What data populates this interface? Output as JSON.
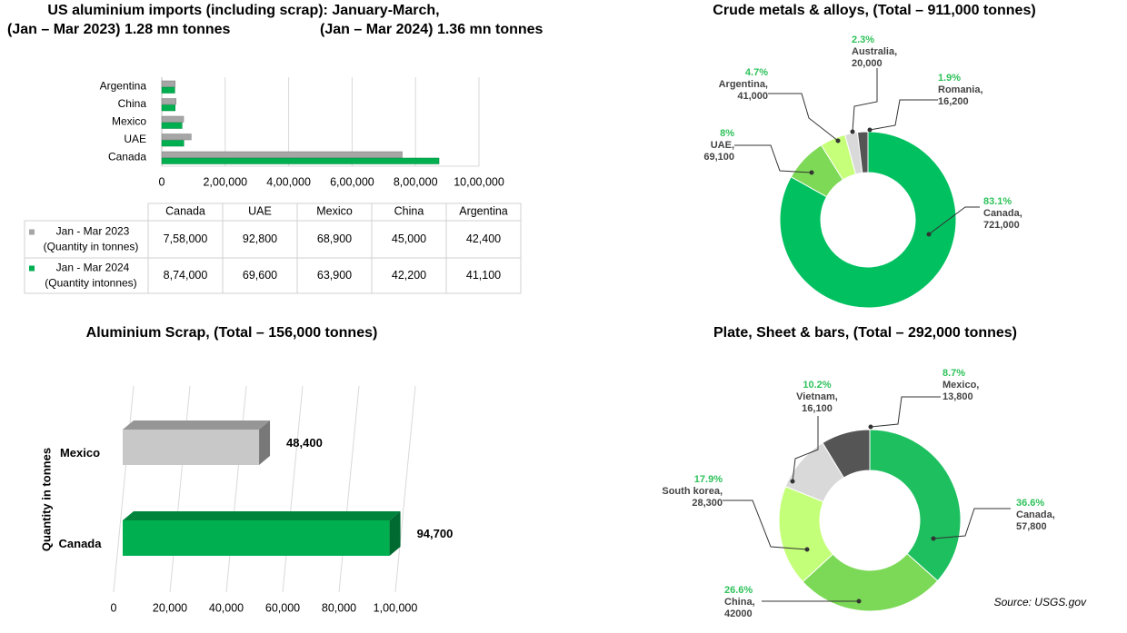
{
  "chart_data": [
    {
      "type": "hbar",
      "title": "US aluminium imports (including scrap): January-March,",
      "subtitles": [
        "(Jan – Mar 2023) 1.28 mn tonnes",
        "(Jan – Mar 2024) 1.36 mn tonnes"
      ],
      "categories": [
        "Canada",
        "UAE",
        "Mexico",
        "China",
        "Argentina"
      ],
      "series": [
        {
          "name": "Jan - Mar 2023",
          "name_note": "(Quantity in tonnes)",
          "color": "#a6a6a6",
          "values": [
            758000,
            92800,
            68900,
            45000,
            42400
          ],
          "value_labels": [
            "7,58,000",
            "92,800",
            "68,900",
            "45,000",
            "42,400"
          ]
        },
        {
          "name": "Jan - Mar 2024",
          "name_note": "(Quantity intonnes)",
          "color": "#00b050",
          "values": [
            874000,
            69600,
            63900,
            42200,
            41100
          ],
          "value_labels": [
            "8,74,000",
            "69,600",
            "63,900",
            "42,200",
            "41,100"
          ]
        }
      ],
      "xlim": [
        0,
        1000000
      ],
      "xticks": [
        0,
        {
          "value": 200000,
          "label": "2,00,000"
        },
        {
          "value": 400000,
          "label": "4,00,000"
        },
        {
          "value": 600000,
          "label": "6,00,000"
        },
        {
          "value": 800000,
          "label": "8,00,000"
        },
        {
          "value": 1000000,
          "label": "10,00,000"
        }
      ],
      "grid": true
    },
    {
      "type": "donut",
      "title": "Crude metals & alloys, (Total – 911,000 tonnes)",
      "categories": [
        "Canada,",
        "UAE,",
        "Argentina,",
        "Australia,",
        "Romania,"
      ],
      "values": [
        83.1,
        8,
        4.7,
        2.3,
        1.9
      ],
      "value_labels": [
        "83.1%",
        "8%",
        "4.7%",
        "2.3%",
        "1.9%"
      ],
      "quantities": [
        721000,
        69100,
        41000,
        20000,
        16200
      ],
      "quantity_labels": [
        "721,000",
        "69,100",
        "41,000",
        "20,000",
        "16,200"
      ],
      "colors": [
        "#00c060",
        "#7ed957",
        "#c6ff7a",
        "#d9d9d9",
        "#555555"
      ]
    },
    {
      "type": "bar3d",
      "title": "Aluminium Scrap, (Total – 156,000 tonnes)",
      "ylabel": "Quantity in tonnes",
      "categories": [
        "Mexico",
        "Canada"
      ],
      "values": [
        48400,
        94700
      ],
      "value_labels": [
        "48,400",
        "94,700"
      ],
      "colors": [
        "#c8c8c8",
        "#00b050"
      ],
      "xlim": [
        0,
        100000
      ],
      "xticks": [
        0,
        {
          "value": 20000,
          "label": "20,000"
        },
        {
          "value": 40000,
          "label": "40,000"
        },
        {
          "value": 60000,
          "label": "60,000"
        },
        {
          "value": 80000,
          "label": "80,000"
        },
        {
          "value": 100000,
          "label": "1,00,000"
        }
      ],
      "grid": true
    },
    {
      "type": "donut",
      "title": "Plate, Sheet & bars, (Total – 292,000 tonnes)",
      "categories": [
        "Canada,",
        "China,",
        "South korea,",
        "Vietnam,",
        "Mexico,"
      ],
      "values": [
        36.6,
        26.6,
        17.9,
        10.2,
        8.7
      ],
      "value_labels": [
        "36.6%",
        "26.6%",
        "17.9%",
        "10.2%",
        "8.7%"
      ],
      "quantities": [
        57800,
        42000,
        28300,
        16100,
        13800
      ],
      "quantity_labels": [
        "57,800",
        "42000",
        "28,300",
        "16,100",
        "13,800"
      ],
      "colors": [
        "#1dbf5f",
        "#7cd957",
        "#c4ff7a",
        "#d9d9d9",
        "#555555"
      ]
    }
  ],
  "source": "Source: USGS.gov"
}
